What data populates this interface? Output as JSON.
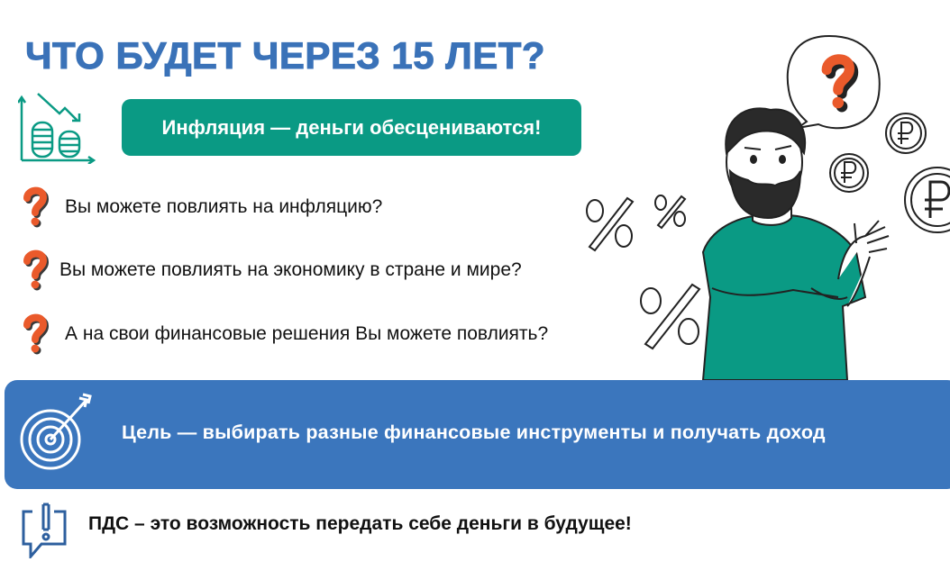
{
  "title": "ЧТО БУДЕТ ЧЕРЕЗ 15 ЛЕТ?",
  "inflation_label": "Инфляция — деньги обесцениваются!",
  "questions": [
    {
      "text": "Вы можете повлиять на инфляцию?"
    },
    {
      "text": "Вы можете повлиять на экономику в стране и мире?"
    },
    {
      "text": "А на свои финансовые решения Вы можете повлиять?"
    }
  ],
  "goal_text": "Цель — выбирать разные финансовые инструменты и получать доход",
  "pds_text": "ПДС – это возможность передать себе деньги в будущее!",
  "colors": {
    "title": "#3a72b8",
    "teal": "#0a9a84",
    "banner": "#3b76bd",
    "question_mark": "#ea5a2b"
  },
  "icons": [
    "coins-decline-chart-icon",
    "question-mark-icon",
    "target-arrow-icon",
    "exclamation-speech-bubble-icon",
    "ruble-coin-icon",
    "percent-icon"
  ]
}
